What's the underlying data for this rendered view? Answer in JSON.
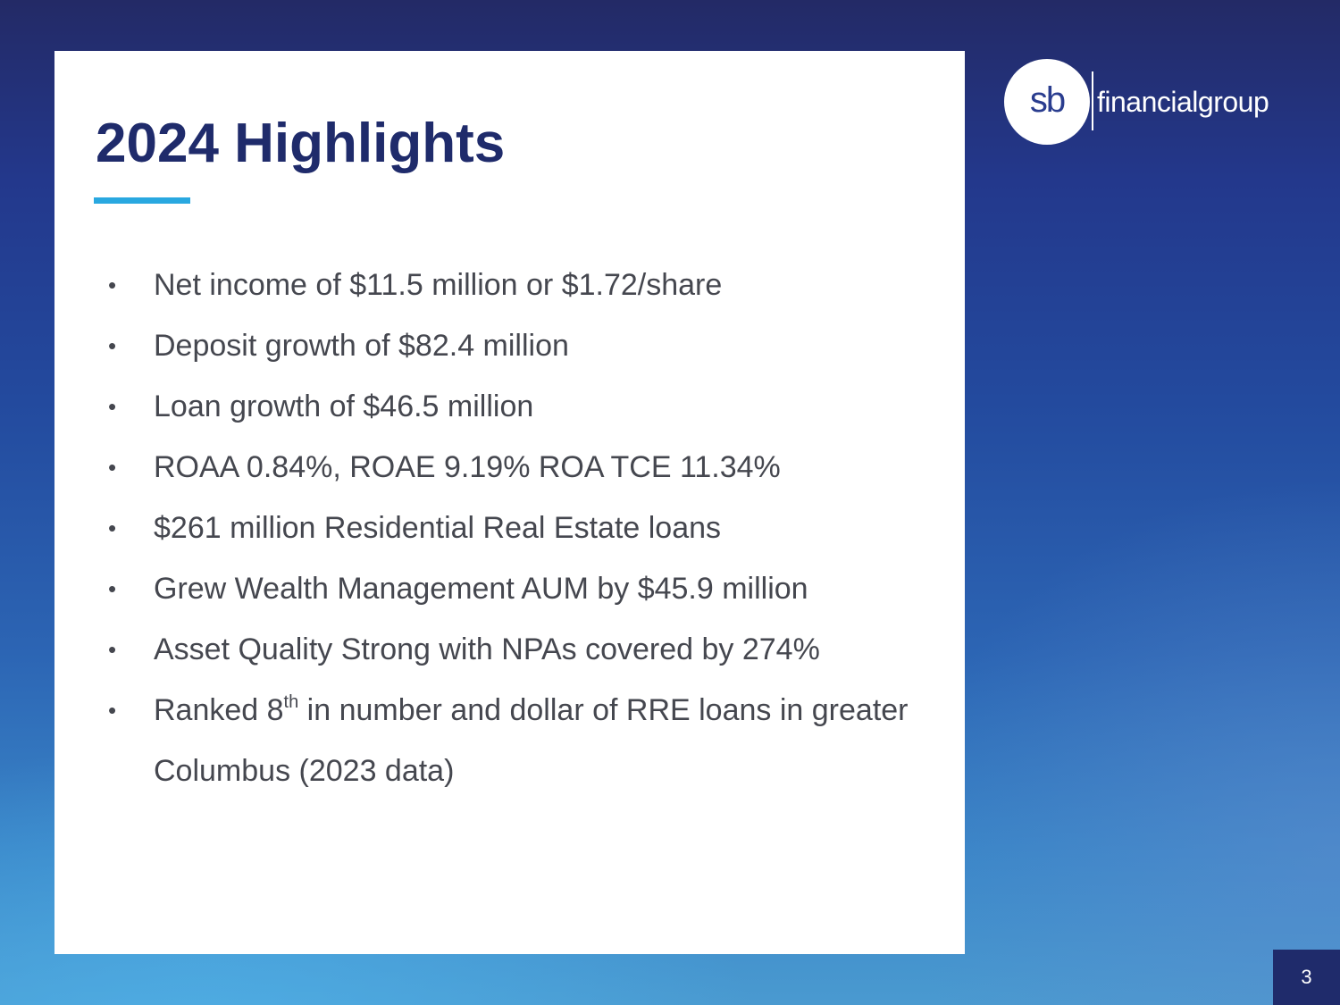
{
  "slide": {
    "title": "2024 Highlights",
    "page_number": "3"
  },
  "logo": {
    "monogram": "sb",
    "wordmark": "financialgroup"
  },
  "bullets": {
    "marker": "•",
    "items": [
      {
        "text": "Net income of $11.5 million or $1.72/share"
      },
      {
        "text": "Deposit growth of $82.4 million"
      },
      {
        "text": "Loan growth of $46.5 million"
      },
      {
        "text": "ROAA 0.84%, ROAE 9.19% ROA TCE 11.34%"
      },
      {
        "text": "$261 million Residential Real Estate loans"
      },
      {
        "text": "Grew Wealth Management AUM by $45.9 million"
      },
      {
        "text": "Asset Quality Strong with NPAs covered by 274%"
      },
      {
        "text_before": "Ranked 8",
        "superscript": "th",
        "text_after": " in number and dollar of RRE loans in greater Columbus (2023 data)"
      }
    ]
  },
  "colors": {
    "title": "#1f2b6b",
    "accent": "#29a8e0",
    "body_text": "#45474f",
    "page_number_box": "#1f2b6b"
  }
}
